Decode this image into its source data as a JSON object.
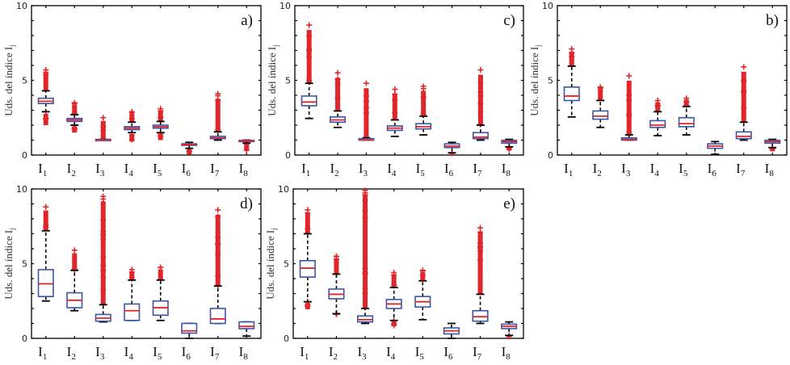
{
  "figure": {
    "colors": {
      "box": "#3b55a6",
      "median": "#e0262b",
      "whisker": "#000000",
      "outlier": "#e0262b",
      "axis": "#000000"
    }
  },
  "chart_data": [
    {
      "type": "box",
      "panel": "a)",
      "ylabel": "Uds. del índice I",
      "ylabel_subscript": "j",
      "ylim": [
        0,
        10
      ],
      "yticks": [
        "0",
        "5",
        "10"
      ],
      "categories": [
        {
          "base": "I",
          "sub": "1"
        },
        {
          "base": "I",
          "sub": "2"
        },
        {
          "base": "I",
          "sub": "3"
        },
        {
          "base": "I",
          "sub": "4"
        },
        {
          "base": "I",
          "sub": "5"
        },
        {
          "base": "I",
          "sub": "6"
        },
        {
          "base": "I",
          "sub": "7"
        },
        {
          "base": "I",
          "sub": "8"
        }
      ],
      "boxes": [
        {
          "q1": 3.45,
          "median": 3.6,
          "q3": 3.8,
          "whisker_low": 2.9,
          "whisker_high": 4.3,
          "outliers_low": [
            2.0,
            2.9
          ],
          "outliers_high": [
            4.3,
            5.7
          ]
        },
        {
          "q1": 2.25,
          "median": 2.35,
          "q3": 2.45,
          "whisker_low": 2.0,
          "whisker_high": 2.7,
          "outliers_low": [
            1.5,
            2.0
          ],
          "outliers_high": [
            2.7,
            3.5
          ]
        },
        {
          "q1": 1.0,
          "median": 1.0,
          "q3": 1.05,
          "whisker_low": 1.0,
          "whisker_high": 1.05,
          "outliers_low": [],
          "outliers_high": [
            1.05,
            2.5
          ]
        },
        {
          "q1": 1.7,
          "median": 1.8,
          "q3": 1.9,
          "whisker_low": 1.5,
          "whisker_high": 2.2,
          "outliers_low": [
            0.9,
            1.5
          ],
          "outliers_high": [
            2.2,
            2.9
          ]
        },
        {
          "q1": 1.8,
          "median": 1.9,
          "q3": 2.0,
          "whisker_low": 1.5,
          "whisker_high": 2.25,
          "outliers_low": [
            1.0,
            1.5
          ],
          "outliers_high": [
            2.25,
            3.1
          ]
        },
        {
          "q1": 0.65,
          "median": 0.7,
          "q3": 0.75,
          "whisker_low": 0.45,
          "whisker_high": 0.85,
          "outliers_low": [
            0.05,
            0.45
          ],
          "outliers_high": []
        },
        {
          "q1": 1.1,
          "median": 1.15,
          "q3": 1.25,
          "whisker_low": 1.0,
          "whisker_high": 1.55,
          "outliers_low": [],
          "outliers_high": [
            1.55,
            4.1
          ]
        },
        {
          "q1": 0.9,
          "median": 0.95,
          "q3": 0.98,
          "whisker_low": 0.8,
          "whisker_high": 1.0,
          "outliers_low": [
            0.3,
            0.8
          ],
          "outliers_high": []
        }
      ]
    },
    {
      "type": "box",
      "panel": "c)",
      "ylabel": "Uds. del índice I",
      "ylabel_subscript": "j",
      "ylim": [
        0,
        10
      ],
      "yticks": [
        "0",
        "5",
        "10"
      ],
      "categories": [
        {
          "base": "I",
          "sub": "1"
        },
        {
          "base": "I",
          "sub": "2"
        },
        {
          "base": "I",
          "sub": "3"
        },
        {
          "base": "I",
          "sub": "4"
        },
        {
          "base": "I",
          "sub": "5"
        },
        {
          "base": "I",
          "sub": "6"
        },
        {
          "base": "I",
          "sub": "7"
        },
        {
          "base": "I",
          "sub": "8"
        }
      ],
      "boxes": [
        {
          "q1": 3.3,
          "median": 3.55,
          "q3": 3.95,
          "whisker_low": 2.45,
          "whisker_high": 4.8,
          "outliers_low": [],
          "outliers_high": [
            4.8,
            8.7
          ]
        },
        {
          "q1": 2.2,
          "median": 2.35,
          "q3": 2.55,
          "whisker_low": 1.85,
          "whisker_high": 2.95,
          "outliers_low": [],
          "outliers_high": [
            2.95,
            5.5
          ]
        },
        {
          "q1": 1.0,
          "median": 1.0,
          "q3": 1.1,
          "whisker_low": 1.0,
          "whisker_high": 1.15,
          "outliers_low": [],
          "outliers_high": [
            1.15,
            4.8
          ]
        },
        {
          "q1": 1.65,
          "median": 1.8,
          "q3": 1.95,
          "whisker_low": 1.25,
          "whisker_high": 2.35,
          "outliers_low": [],
          "outliers_high": [
            2.35,
            4.4
          ]
        },
        {
          "q1": 1.75,
          "median": 1.9,
          "q3": 2.1,
          "whisker_low": 1.35,
          "whisker_high": 2.6,
          "outliers_low": [],
          "outliers_high": [
            2.6,
            4.6
          ]
        },
        {
          "q1": 0.5,
          "median": 0.6,
          "q3": 0.75,
          "whisker_low": 0.15,
          "whisker_high": 0.85,
          "outliers_low": [
            0.1,
            0.15
          ],
          "outliers_high": []
        },
        {
          "q1": 1.1,
          "median": 1.2,
          "q3": 1.5,
          "whisker_low": 1.0,
          "whisker_high": 2.0,
          "outliers_low": [],
          "outliers_high": [
            2.0,
            5.7
          ]
        },
        {
          "q1": 0.8,
          "median": 0.9,
          "q3": 0.98,
          "whisker_low": 0.55,
          "whisker_high": 1.05,
          "outliers_low": [
            0.3,
            0.55
          ],
          "outliers_high": []
        }
      ]
    },
    {
      "type": "box",
      "panel": "b)",
      "ylabel": "Uds. del índice I",
      "ylabel_subscript": "j",
      "ylim": [
        0,
        10
      ],
      "yticks": [
        "0",
        "5",
        "10"
      ],
      "categories": [
        {
          "base": "I",
          "sub": "1"
        },
        {
          "base": "I",
          "sub": "2"
        },
        {
          "base": "I",
          "sub": "3"
        },
        {
          "base": "I",
          "sub": "4"
        },
        {
          "base": "I",
          "sub": "5"
        },
        {
          "base": "I",
          "sub": "6"
        },
        {
          "base": "I",
          "sub": "7"
        },
        {
          "base": "I",
          "sub": "8"
        }
      ],
      "boxes": [
        {
          "q1": 3.65,
          "median": 3.95,
          "q3": 4.55,
          "whisker_low": 2.55,
          "whisker_high": 5.95,
          "outliers_low": [],
          "outliers_high": [
            5.95,
            7.1
          ]
        },
        {
          "q1": 2.4,
          "median": 2.6,
          "q3": 2.95,
          "whisker_low": 1.85,
          "whisker_high": 3.65,
          "outliers_low": [],
          "outliers_high": [
            3.65,
            4.55
          ]
        },
        {
          "q1": 1.0,
          "median": 1.05,
          "q3": 1.15,
          "whisker_low": 1.0,
          "whisker_high": 1.35,
          "outliers_low": [],
          "outliers_high": [
            1.35,
            5.3
          ]
        },
        {
          "q1": 1.85,
          "median": 2.0,
          "q3": 2.3,
          "whisker_low": 1.3,
          "whisker_high": 2.9,
          "outliers_low": [],
          "outliers_high": [
            2.9,
            3.65
          ]
        },
        {
          "q1": 1.9,
          "median": 2.1,
          "q3": 2.5,
          "whisker_low": 1.35,
          "whisker_high": 3.25,
          "outliers_low": [],
          "outliers_high": [
            3.25,
            3.8
          ]
        },
        {
          "q1": 0.45,
          "median": 0.6,
          "q3": 0.75,
          "whisker_low": 0.05,
          "whisker_high": 0.9,
          "outliers_low": [],
          "outliers_high": []
        },
        {
          "q1": 1.1,
          "median": 1.25,
          "q3": 1.55,
          "whisker_low": 1.0,
          "whisker_high": 2.2,
          "outliers_low": [],
          "outliers_high": [
            2.2,
            5.9
          ]
        },
        {
          "q1": 0.8,
          "median": 0.9,
          "q3": 0.98,
          "whisker_low": 0.5,
          "whisker_high": 1.05,
          "outliers_low": [
            0.25,
            0.5
          ],
          "outliers_high": []
        }
      ]
    },
    {
      "type": "box",
      "panel": "d)",
      "ylabel": "Uds. del índice I",
      "ylabel_subscript": "j",
      "ylim": [
        0,
        10
      ],
      "yticks": [
        "0",
        "5",
        "10"
      ],
      "categories": [
        {
          "base": "I",
          "sub": "1"
        },
        {
          "base": "I",
          "sub": "2"
        },
        {
          "base": "I",
          "sub": "3"
        },
        {
          "base": "I",
          "sub": "4"
        },
        {
          "base": "I",
          "sub": "5"
        },
        {
          "base": "I",
          "sub": "6"
        },
        {
          "base": "I",
          "sub": "7"
        },
        {
          "base": "I",
          "sub": "8"
        }
      ],
      "boxes": [
        {
          "q1": 2.8,
          "median": 3.65,
          "q3": 4.6,
          "whisker_low": 2.5,
          "whisker_high": 7.2,
          "outliers_low": [],
          "outliers_high": [
            7.2,
            8.8
          ]
        },
        {
          "q1": 2.05,
          "median": 2.55,
          "q3": 3.05,
          "whisker_low": 1.85,
          "whisker_high": 4.55,
          "outliers_low": [],
          "outliers_high": [
            4.55,
            5.9
          ]
        },
        {
          "q1": 1.15,
          "median": 1.35,
          "q3": 1.6,
          "whisker_low": 1.1,
          "whisker_high": 2.25,
          "outliers_low": [],
          "outliers_high": [
            2.25,
            9.5
          ]
        },
        {
          "q1": 1.2,
          "median": 1.85,
          "q3": 2.3,
          "whisker_low": 1.2,
          "whisker_high": 3.9,
          "outliers_low": [],
          "outliers_high": [
            3.9,
            4.6
          ]
        },
        {
          "q1": 1.55,
          "median": 2.05,
          "q3": 2.5,
          "whisker_low": 1.2,
          "whisker_high": 3.9,
          "outliers_low": [],
          "outliers_high": [
            3.9,
            4.75
          ]
        },
        {
          "q1": 0.35,
          "median": 0.5,
          "q3": 1.0,
          "whisker_low": 0.0,
          "whisker_high": 1.0,
          "outliers_low": [],
          "outliers_high": []
        },
        {
          "q1": 1.0,
          "median": 1.3,
          "q3": 2.0,
          "whisker_low": 1.0,
          "whisker_high": 3.5,
          "outliers_low": [],
          "outliers_high": [
            3.5,
            8.6
          ]
        },
        {
          "q1": 0.65,
          "median": 0.8,
          "q3": 1.1,
          "whisker_low": 0.15,
          "whisker_high": 1.1,
          "outliers_low": [],
          "outliers_high": []
        }
      ]
    },
    {
      "type": "box",
      "panel": "e)",
      "ylabel": "Uds. del índice I",
      "ylabel_subscript": "j",
      "ylim": [
        0,
        10
      ],
      "yticks": [
        "0",
        "5",
        "10"
      ],
      "categories": [
        {
          "base": "I",
          "sub": "1"
        },
        {
          "base": "I",
          "sub": "2"
        },
        {
          "base": "I",
          "sub": "3"
        },
        {
          "base": "I",
          "sub": "4"
        },
        {
          "base": "I",
          "sub": "5"
        },
        {
          "base": "I",
          "sub": "6"
        },
        {
          "base": "I",
          "sub": "7"
        },
        {
          "base": "I",
          "sub": "8"
        }
      ],
      "boxes": [
        {
          "q1": 4.1,
          "median": 4.7,
          "q3": 5.2,
          "whisker_low": 2.45,
          "whisker_high": 7.0,
          "outliers_low": [
            1.95,
            2.45
          ],
          "outliers_high": [
            7.0,
            8.6
          ]
        },
        {
          "q1": 2.65,
          "median": 2.95,
          "q3": 3.3,
          "whisker_low": 1.65,
          "whisker_high": 4.3,
          "outliers_low": [
            1.6,
            1.65
          ],
          "outliers_high": [
            4.3,
            5.5
          ]
        },
        {
          "q1": 1.1,
          "median": 1.25,
          "q3": 1.5,
          "whisker_low": 1.0,
          "whisker_high": 2.0,
          "outliers_low": [],
          "outliers_high": [
            2.0,
            9.9
          ]
        },
        {
          "q1": 2.0,
          "median": 2.3,
          "q3": 2.6,
          "whisker_low": 1.2,
          "whisker_high": 3.4,
          "outliers_low": [
            0.8,
            1.2
          ],
          "outliers_high": [
            3.4,
            4.4
          ]
        },
        {
          "q1": 2.1,
          "median": 2.45,
          "q3": 2.8,
          "whisker_low": 1.25,
          "whisker_high": 3.85,
          "outliers_low": [],
          "outliers_high": [
            3.85,
            4.55
          ]
        },
        {
          "q1": 0.3,
          "median": 0.5,
          "q3": 0.7,
          "whisker_low": 0.0,
          "whisker_high": 1.0,
          "outliers_low": [],
          "outliers_high": []
        },
        {
          "q1": 1.15,
          "median": 1.45,
          "q3": 1.85,
          "whisker_low": 1.0,
          "whisker_high": 2.95,
          "outliers_low": [],
          "outliers_high": [
            2.95,
            7.4
          ]
        },
        {
          "q1": 0.65,
          "median": 0.8,
          "q3": 0.95,
          "whisker_low": 0.2,
          "whisker_high": 1.1,
          "outliers_low": [
            0.1,
            0.2
          ],
          "outliers_high": []
        }
      ]
    }
  ]
}
